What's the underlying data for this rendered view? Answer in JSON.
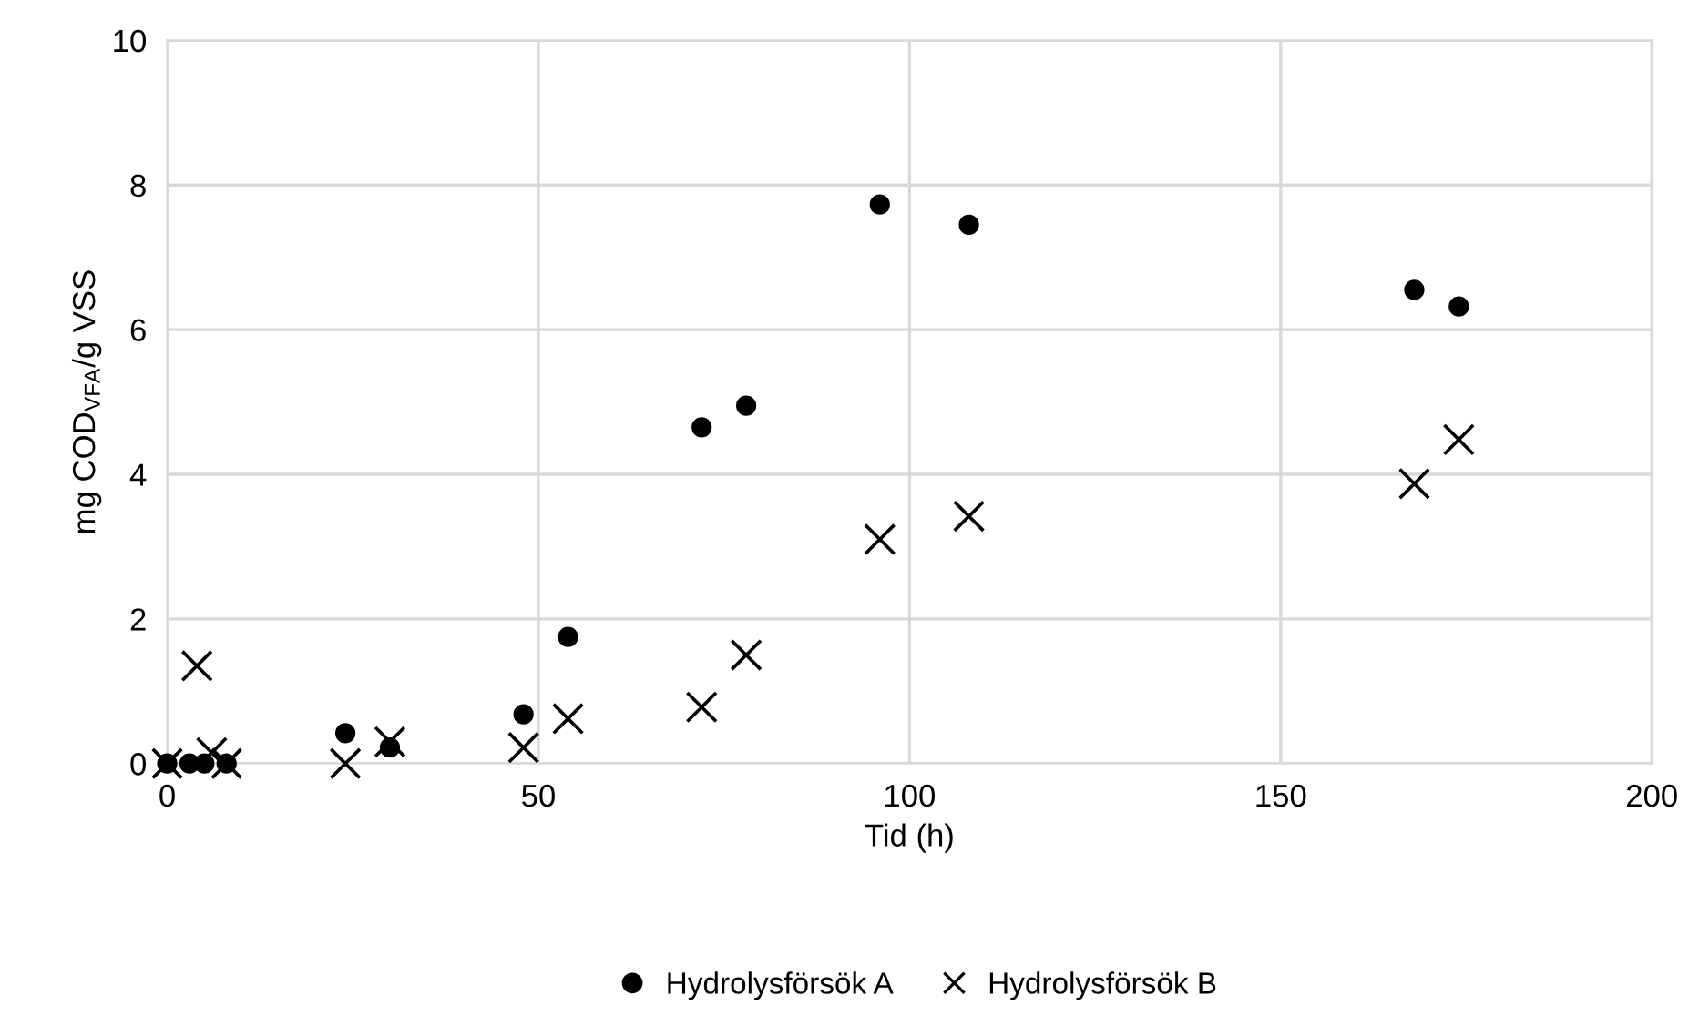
{
  "chart_data": {
    "type": "scatter",
    "xlabel": "Tid (h)",
    "ylabel": "mg COD$_{VFA}$/g VSS",
    "xlim": [
      0,
      200
    ],
    "ylim": [
      0,
      10
    ],
    "xticks": [
      0,
      50,
      100,
      150,
      200
    ],
    "yticks": [
      0,
      2,
      4,
      6,
      8,
      10
    ],
    "grid": true,
    "legend": "bottom",
    "series": [
      {
        "name": "Hydrolysförsök A",
        "color": "#000000",
        "marker": "circle",
        "x": [
          0,
          3,
          5,
          8,
          24,
          30,
          48,
          54,
          72,
          78,
          96,
          108,
          168,
          174
        ],
        "values": [
          0,
          0,
          0,
          0,
          0.42,
          0.22,
          0.68,
          1.75,
          4.65,
          4.95,
          7.73,
          7.45,
          6.55,
          6.32
        ]
      },
      {
        "name": "Hydrolysförsök B",
        "color": "#000000",
        "marker": "cross",
        "x": [
          0,
          4,
          6,
          8,
          24,
          30,
          48,
          54,
          72,
          78,
          96,
          108,
          168,
          174
        ],
        "values": [
          0,
          1.35,
          0.15,
          0,
          0,
          0.3,
          0.22,
          0.62,
          0.78,
          1.5,
          3.1,
          3.42,
          3.87,
          4.48
        ]
      }
    ]
  }
}
